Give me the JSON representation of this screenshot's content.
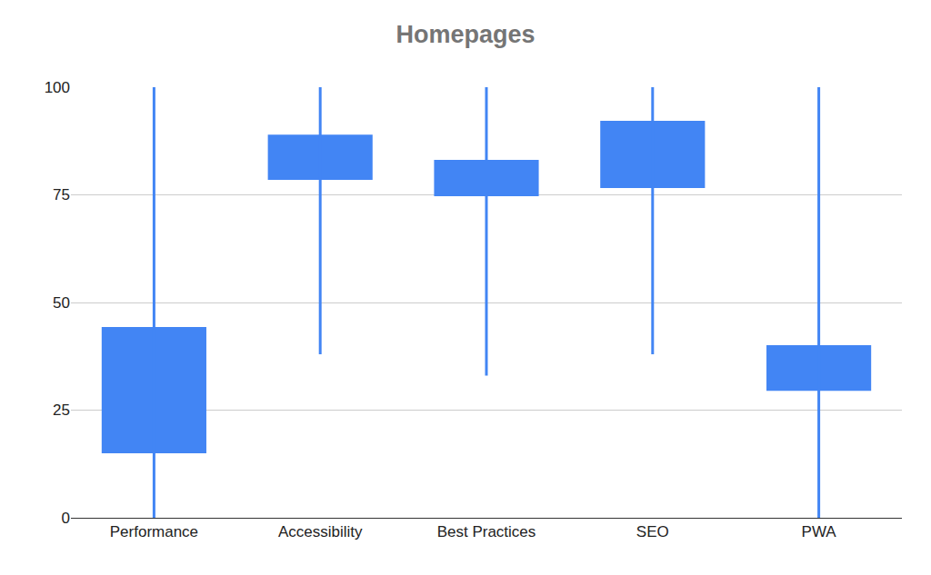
{
  "chart_data": {
    "type": "candlestick",
    "title": "Homepages",
    "categories": [
      "Performance",
      "Accessibility",
      "Best Practices",
      "SEO",
      "PWA"
    ],
    "low": [
      0,
      38,
      33,
      38,
      0
    ],
    "q1": [
      15,
      78.5,
      74.7,
      76.6,
      29.5
    ],
    "q3": [
      44.3,
      89,
      83.1,
      92.2,
      40.1
    ],
    "high": [
      100,
      100,
      100,
      100,
      100
    ],
    "color": "#4285f4",
    "ylim": [
      0,
      100
    ],
    "yticks": [
      0,
      25,
      50,
      75,
      100
    ],
    "grid": true
  }
}
